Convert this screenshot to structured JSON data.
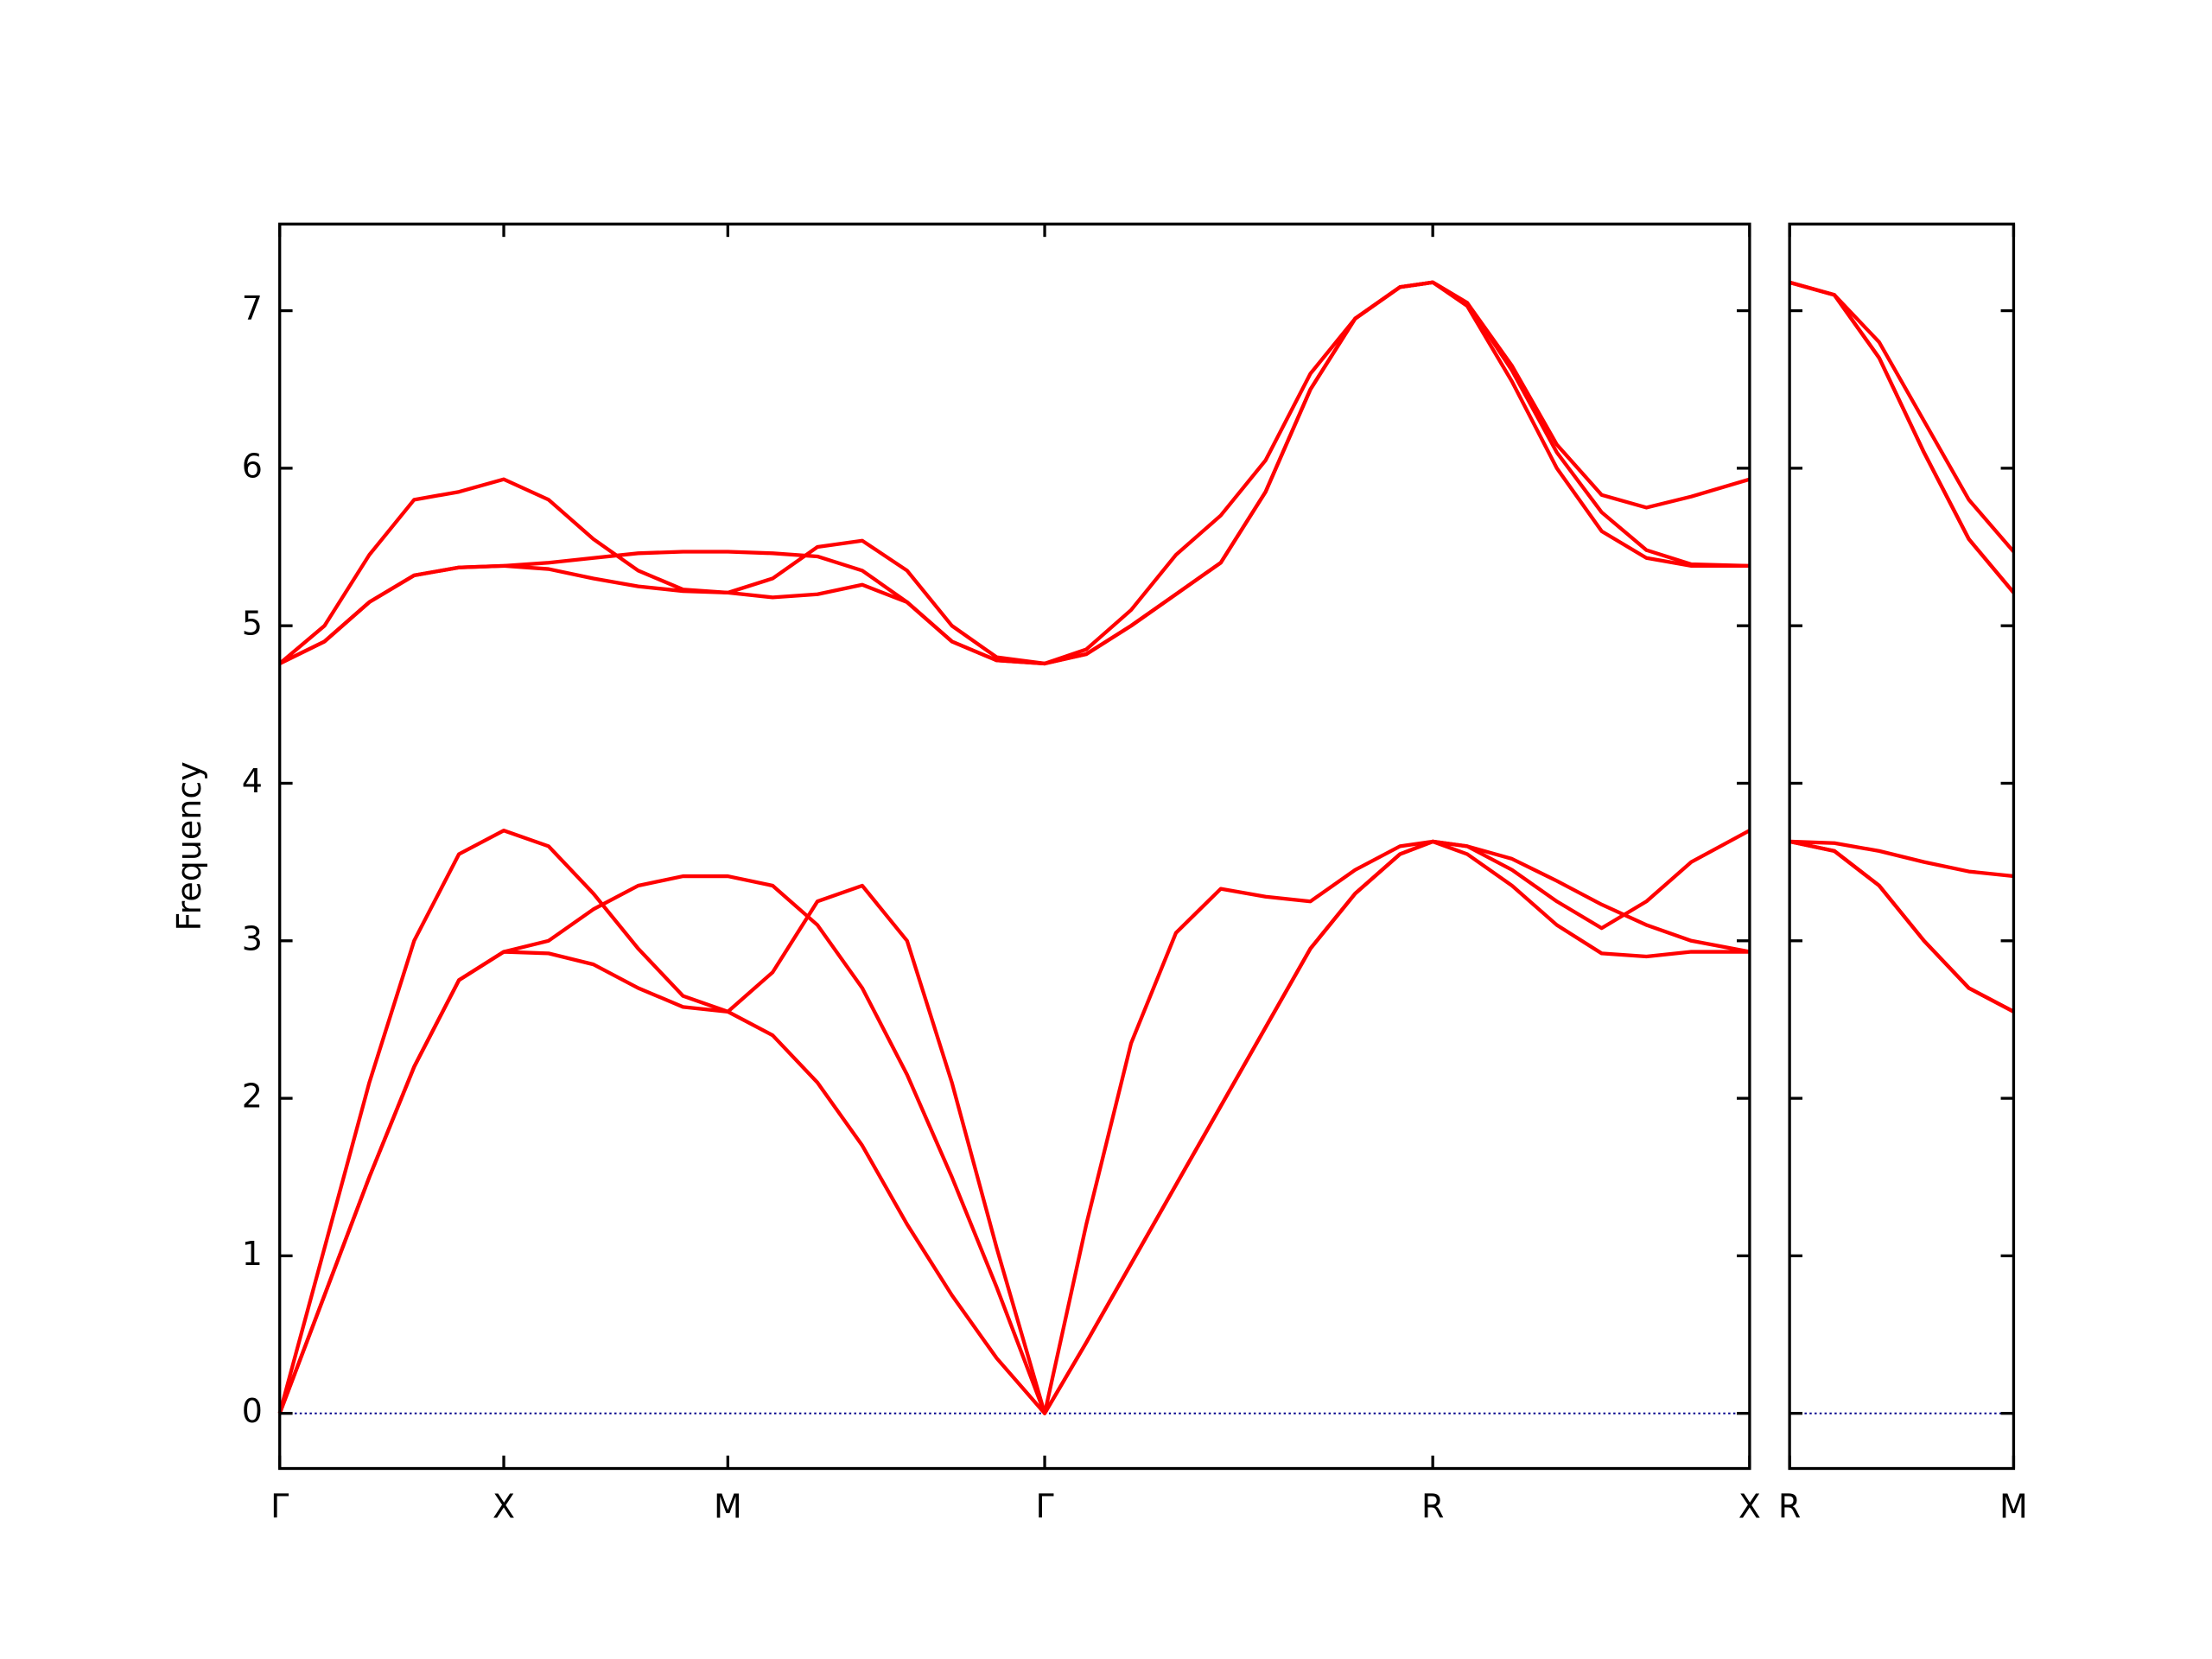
{
  "chart_data": [
    {
      "type": "line",
      "y_label": "Frequency",
      "x": [
        0,
        0.1,
        0.2,
        0.3,
        0.4,
        0.5,
        0.6,
        0.7,
        0.8,
        0.9,
        1.0,
        1.1,
        1.2,
        1.3,
        1.4,
        1.5,
        1.6,
        1.7071,
        1.8,
        1.9,
        2.0,
        2.1,
        2.2,
        2.3,
        2.4,
        2.5,
        2.5731,
        2.65,
        2.75,
        2.85,
        2.95,
        3.05,
        3.15,
        3.2802
      ],
      "xlim": [
        0,
        3.2802
      ],
      "xticks": [
        {
          "value": 0,
          "label": "Γ"
        },
        {
          "value": 0.5,
          "label": "X"
        },
        {
          "value": 1.0,
          "label": "M"
        },
        {
          "value": 1.7071,
          "label": "Γ"
        },
        {
          "value": 2.5731,
          "label": "R"
        },
        {
          "value": 3.2802,
          "label": "X"
        }
      ],
      "ylim": [
        -0.35,
        7.55
      ],
      "yticks": [
        0,
        1,
        2,
        3,
        4,
        5,
        6,
        7
      ],
      "ytick_labels": true,
      "hline": {
        "value": 0,
        "color": "#00008b"
      },
      "series": [
        {
          "color": "#ff0000",
          "values": [
            0,
            0.75,
            1.5,
            2.2,
            2.75,
            2.93,
            2.92,
            2.85,
            2.7,
            2.58,
            2.55,
            2.4,
            2.1,
            1.7,
            1.2,
            0.75,
            0.35,
            0,
            0.45,
            0.95,
            1.45,
            1.95,
            2.45,
            2.95,
            3.3,
            3.55,
            3.63,
            3.55,
            3.35,
            3.1,
            2.92,
            2.9,
            2.93,
            2.93
          ]
        },
        {
          "color": "#ff0000",
          "values": [
            0,
            0.75,
            1.5,
            2.2,
            2.75,
            2.93,
            3.0,
            3.2,
            3.35,
            3.41,
            3.41,
            3.35,
            3.1,
            2.7,
            2.15,
            1.5,
            0.8,
            0,
            0.45,
            0.95,
            1.45,
            1.95,
            2.45,
            2.95,
            3.3,
            3.55,
            3.63,
            3.6,
            3.52,
            3.38,
            3.23,
            3.1,
            3.0,
            2.93
          ]
        },
        {
          "color": "#ff0000",
          "values": [
            0,
            1.05,
            2.1,
            3.0,
            3.55,
            3.7,
            3.6,
            3.3,
            2.95,
            2.65,
            2.55,
            2.8,
            3.25,
            3.35,
            3.0,
            2.1,
            1.05,
            0,
            1.2,
            2.35,
            3.05,
            3.33,
            3.28,
            3.25,
            3.45,
            3.6,
            3.63,
            3.6,
            3.45,
            3.25,
            3.08,
            3.25,
            3.5,
            3.7
          ]
        },
        {
          "color": "#ff0000",
          "values": [
            4.76,
            4.9,
            5.15,
            5.32,
            5.37,
            5.38,
            5.36,
            5.3,
            5.25,
            5.22,
            5.21,
            5.18,
            5.2,
            5.26,
            5.15,
            4.9,
            4.78,
            4.76,
            4.82,
            5.0,
            5.2,
            5.4,
            5.85,
            6.5,
            6.95,
            7.15,
            7.18,
            7.03,
            6.55,
            6.0,
            5.6,
            5.43,
            5.38,
            5.38
          ]
        },
        {
          "color": "#ff0000",
          "values": [
            4.76,
            4.9,
            5.15,
            5.32,
            5.37,
            5.38,
            5.4,
            5.43,
            5.46,
            5.47,
            5.47,
            5.46,
            5.44,
            5.35,
            5.15,
            4.9,
            4.78,
            4.76,
            4.82,
            5.0,
            5.2,
            5.4,
            5.85,
            6.5,
            6.95,
            7.15,
            7.18,
            7.05,
            6.62,
            6.1,
            5.72,
            5.48,
            5.39,
            5.38
          ]
        },
        {
          "color": "#ff0000",
          "values": [
            4.76,
            5.0,
            5.45,
            5.8,
            5.85,
            5.93,
            5.8,
            5.55,
            5.35,
            5.23,
            5.21,
            5.3,
            5.5,
            5.54,
            5.35,
            5.0,
            4.8,
            4.76,
            4.85,
            5.1,
            5.45,
            5.7,
            6.05,
            6.6,
            6.95,
            7.15,
            7.18,
            7.05,
            6.65,
            6.15,
            5.83,
            5.75,
            5.82,
            5.93
          ]
        }
      ]
    },
    {
      "type": "line",
      "x": [
        0,
        0.1,
        0.2,
        0.3,
        0.4,
        0.5
      ],
      "xlim": [
        0,
        0.5
      ],
      "xticks": [
        {
          "value": 0,
          "label": "R"
        },
        {
          "value": 0.5,
          "label": "M"
        }
      ],
      "ylim": [
        -0.35,
        7.55
      ],
      "yticks": [
        0,
        1,
        2,
        3,
        4,
        5,
        6,
        7
      ],
      "ytick_labels": false,
      "hline": {
        "value": 0,
        "color": "#00008b"
      },
      "series": [
        {
          "color": "#ff0000",
          "values": [
            3.63,
            3.57,
            3.35,
            3.0,
            2.7,
            2.55
          ]
        },
        {
          "color": "#ff0000",
          "values": [
            3.63,
            3.57,
            3.35,
            3.0,
            2.7,
            2.55
          ]
        },
        {
          "color": "#ff0000",
          "values": [
            3.63,
            3.62,
            3.57,
            3.5,
            3.44,
            3.41
          ]
        },
        {
          "color": "#ff0000",
          "values": [
            7.18,
            7.1,
            6.7,
            6.1,
            5.55,
            5.21
          ]
        },
        {
          "color": "#ff0000",
          "values": [
            7.18,
            7.1,
            6.7,
            6.1,
            5.55,
            5.21
          ]
        },
        {
          "color": "#ff0000",
          "values": [
            7.18,
            7.1,
            6.8,
            6.3,
            5.8,
            5.47
          ]
        }
      ]
    }
  ]
}
